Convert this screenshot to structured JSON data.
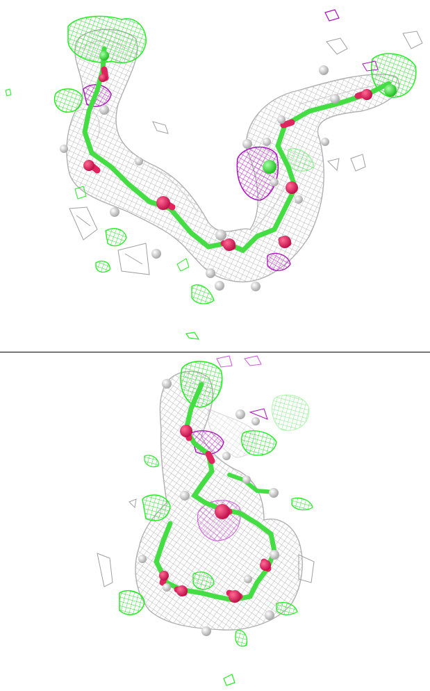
{
  "figure": {
    "panels": [
      {
        "id": "top",
        "description_icon": "electron-density-map-extended-view"
      },
      {
        "id": "bottom",
        "description_icon": "electron-density-map-rotated-view"
      }
    ],
    "colors": {
      "density_mesh": "#b8b8b8",
      "positive_difference": "#33ee33",
      "negative_difference": "#cc22cc",
      "backbone_carbon": "#44dd44",
      "oxygen": "#e0245e",
      "hydrogen_sphere": "#e4e4e4",
      "background": "#ffffff"
    }
  }
}
